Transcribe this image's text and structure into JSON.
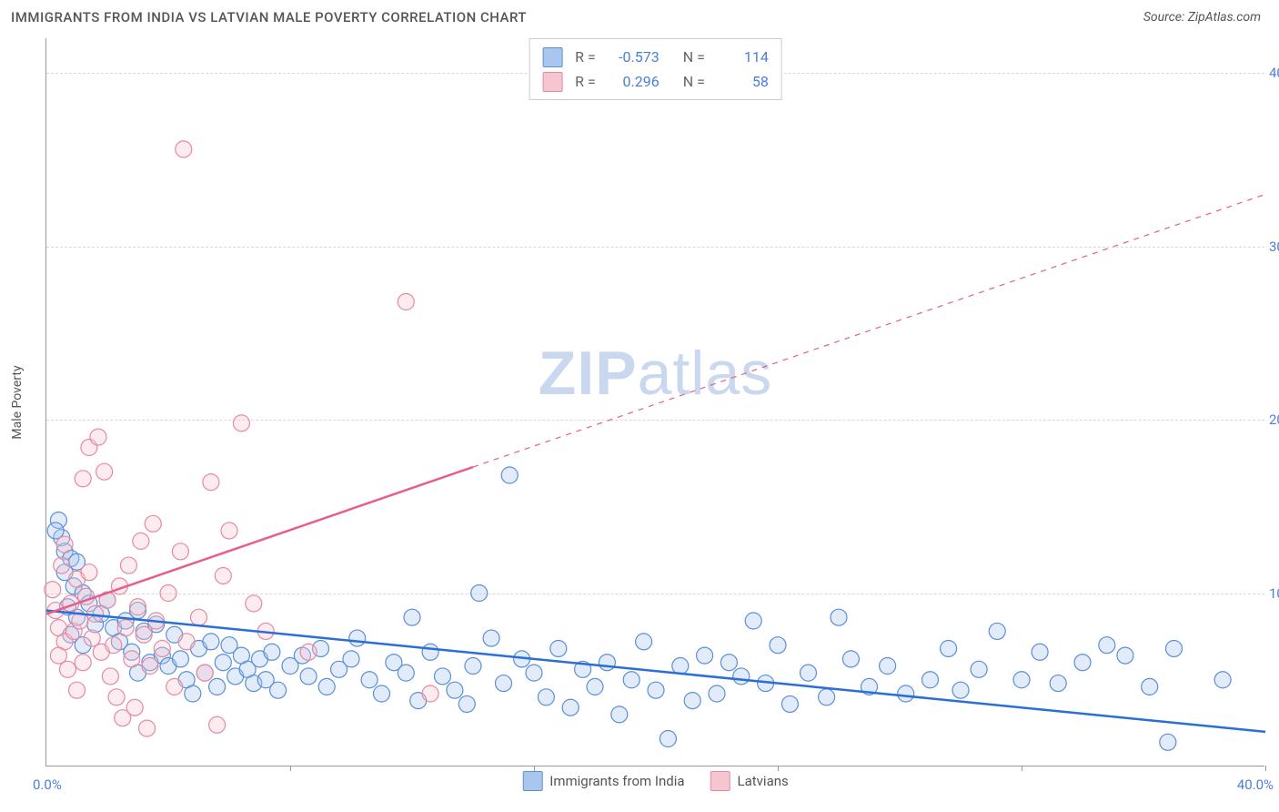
{
  "title": "IMMIGRANTS FROM INDIA VS LATVIAN MALE POVERTY CORRELATION CHART",
  "source": "Source: ZipAtlas.com",
  "watermark": "ZIPatlas",
  "y_axis_label": "Male Poverty",
  "chart": {
    "type": "scatter",
    "xlim": [
      0,
      40
    ],
    "ylim": [
      0,
      42
    ],
    "x_tick_positions": [
      0,
      8,
      16,
      24,
      32,
      40
    ],
    "x_tick_labels_shown": {
      "0": "0.0%",
      "40": "40.0%"
    },
    "y_ticks": [
      {
        "value": 10,
        "label": "10.0%"
      },
      {
        "value": 20,
        "label": "20.0%"
      },
      {
        "value": 30,
        "label": "30.0%"
      },
      {
        "value": 40,
        "label": "40.0%"
      }
    ],
    "background_color": "#ffffff",
    "grid_color": "#d8d8d8",
    "axis_color": "#999999",
    "marker_radius": 9,
    "marker_stroke_width": 1.2,
    "marker_fill_opacity": 0.35,
    "trend_line_width": 2.5,
    "series": [
      {
        "key": "india",
        "legend_label": "Immigrants from India",
        "color_fill": "#a8c6ee",
        "color_stroke": "#5b8fd6",
        "trend_color": "#2a6fd6",
        "R": "-0.573",
        "N": "114",
        "trend": {
          "x1": 0,
          "y1": 9.0,
          "x2": 40,
          "y2": 2.0,
          "solid_until_x": 40
        },
        "points": [
          [
            0.4,
            14.2
          ],
          [
            0.5,
            13.2
          ],
          [
            0.6,
            12.4
          ],
          [
            0.8,
            12.0
          ],
          [
            0.6,
            11.2
          ],
          [
            0.9,
            10.4
          ],
          [
            0.3,
            13.6
          ],
          [
            1.0,
            11.8
          ],
          [
            1.2,
            10.0
          ],
          [
            0.7,
            9.2
          ],
          [
            1.4,
            9.4
          ],
          [
            1.0,
            8.6
          ],
          [
            1.6,
            8.2
          ],
          [
            0.8,
            7.6
          ],
          [
            1.2,
            7.0
          ],
          [
            1.8,
            8.8
          ],
          [
            2.0,
            9.6
          ],
          [
            2.2,
            8.0
          ],
          [
            2.6,
            8.4
          ],
          [
            2.4,
            7.2
          ],
          [
            2.8,
            6.6
          ],
          [
            3.0,
            9.0
          ],
          [
            3.2,
            7.8
          ],
          [
            3.4,
            6.0
          ],
          [
            3.0,
            5.4
          ],
          [
            3.6,
            8.2
          ],
          [
            3.8,
            6.4
          ],
          [
            4.0,
            5.8
          ],
          [
            4.2,
            7.6
          ],
          [
            4.4,
            6.2
          ],
          [
            4.6,
            5.0
          ],
          [
            4.8,
            4.2
          ],
          [
            5.0,
            6.8
          ],
          [
            5.2,
            5.4
          ],
          [
            5.4,
            7.2
          ],
          [
            5.6,
            4.6
          ],
          [
            5.8,
            6.0
          ],
          [
            6.0,
            7.0
          ],
          [
            6.2,
            5.2
          ],
          [
            6.4,
            6.4
          ],
          [
            6.6,
            5.6
          ],
          [
            6.8,
            4.8
          ],
          [
            7.0,
            6.2
          ],
          [
            7.2,
            5.0
          ],
          [
            7.4,
            6.6
          ],
          [
            7.6,
            4.4
          ],
          [
            8.0,
            5.8
          ],
          [
            8.4,
            6.4
          ],
          [
            8.6,
            5.2
          ],
          [
            9.0,
            6.8
          ],
          [
            9.2,
            4.6
          ],
          [
            9.6,
            5.6
          ],
          [
            10.0,
            6.2
          ],
          [
            10.2,
            7.4
          ],
          [
            10.6,
            5.0
          ],
          [
            11.0,
            4.2
          ],
          [
            11.4,
            6.0
          ],
          [
            11.8,
            5.4
          ],
          [
            12.0,
            8.6
          ],
          [
            12.2,
            3.8
          ],
          [
            12.6,
            6.6
          ],
          [
            13.0,
            5.2
          ],
          [
            13.4,
            4.4
          ],
          [
            13.8,
            3.6
          ],
          [
            14.0,
            5.8
          ],
          [
            14.2,
            10.0
          ],
          [
            14.6,
            7.4
          ],
          [
            15.0,
            4.8
          ],
          [
            15.2,
            16.8
          ],
          [
            15.6,
            6.2
          ],
          [
            16.0,
            5.4
          ],
          [
            16.4,
            4.0
          ],
          [
            16.8,
            6.8
          ],
          [
            17.2,
            3.4
          ],
          [
            17.6,
            5.6
          ],
          [
            18.0,
            4.6
          ],
          [
            18.4,
            6.0
          ],
          [
            18.8,
            3.0
          ],
          [
            19.2,
            5.0
          ],
          [
            19.6,
            7.2
          ],
          [
            20.0,
            4.4
          ],
          [
            20.4,
            1.6
          ],
          [
            20.8,
            5.8
          ],
          [
            21.2,
            3.8
          ],
          [
            21.6,
            6.4
          ],
          [
            22.0,
            4.2
          ],
          [
            22.4,
            6.0
          ],
          [
            22.8,
            5.2
          ],
          [
            23.2,
            8.4
          ],
          [
            23.6,
            4.8
          ],
          [
            24.0,
            7.0
          ],
          [
            24.4,
            3.6
          ],
          [
            25.0,
            5.4
          ],
          [
            25.6,
            4.0
          ],
          [
            26.0,
            8.6
          ],
          [
            26.4,
            6.2
          ],
          [
            27.0,
            4.6
          ],
          [
            27.6,
            5.8
          ],
          [
            28.2,
            4.2
          ],
          [
            29.0,
            5.0
          ],
          [
            29.6,
            6.8
          ],
          [
            30.0,
            4.4
          ],
          [
            30.6,
            5.6
          ],
          [
            31.2,
            7.8
          ],
          [
            32.0,
            5.0
          ],
          [
            32.6,
            6.6
          ],
          [
            33.2,
            4.8
          ],
          [
            34.0,
            6.0
          ],
          [
            34.8,
            7.0
          ],
          [
            35.4,
            6.4
          ],
          [
            36.2,
            4.6
          ],
          [
            37.0,
            6.8
          ],
          [
            38.6,
            5.0
          ],
          [
            36.8,
            1.4
          ]
        ]
      },
      {
        "key": "latvians",
        "legend_label": "Latvians",
        "color_fill": "#f6c6d0",
        "color_stroke": "#e68aa0",
        "trend_color": "#e85d8a",
        "R": "0.296",
        "N": "58",
        "trend": {
          "x1": 0,
          "y1": 8.8,
          "x2": 40,
          "y2": 33.0,
          "solid_until_x": 14
        },
        "points": [
          [
            0.2,
            10.2
          ],
          [
            0.3,
            9.0
          ],
          [
            0.4,
            8.0
          ],
          [
            0.5,
            11.6
          ],
          [
            0.6,
            7.2
          ],
          [
            0.4,
            6.4
          ],
          [
            0.8,
            9.4
          ],
          [
            0.6,
            12.8
          ],
          [
            0.9,
            7.8
          ],
          [
            1.0,
            10.8
          ],
          [
            0.7,
            5.6
          ],
          [
            1.1,
            8.4
          ],
          [
            1.2,
            6.0
          ],
          [
            1.3,
            9.8
          ],
          [
            1.0,
            4.4
          ],
          [
            1.4,
            11.2
          ],
          [
            1.5,
            7.4
          ],
          [
            1.2,
            16.6
          ],
          [
            1.6,
            8.8
          ],
          [
            1.4,
            18.4
          ],
          [
            1.8,
            6.6
          ],
          [
            1.7,
            19.0
          ],
          [
            2.0,
            9.6
          ],
          [
            1.9,
            17.0
          ],
          [
            2.2,
            7.0
          ],
          [
            2.1,
            5.2
          ],
          [
            2.4,
            10.4
          ],
          [
            2.3,
            4.0
          ],
          [
            2.6,
            8.0
          ],
          [
            2.5,
            2.8
          ],
          [
            2.8,
            6.2
          ],
          [
            2.7,
            11.6
          ],
          [
            3.0,
            9.2
          ],
          [
            2.9,
            3.4
          ],
          [
            3.2,
            7.6
          ],
          [
            3.1,
            13.0
          ],
          [
            3.4,
            5.8
          ],
          [
            3.3,
            2.2
          ],
          [
            3.6,
            8.4
          ],
          [
            3.5,
            14.0
          ],
          [
            3.8,
            6.8
          ],
          [
            4.0,
            10.0
          ],
          [
            4.2,
            4.6
          ],
          [
            4.4,
            12.4
          ],
          [
            4.6,
            7.2
          ],
          [
            4.5,
            35.6
          ],
          [
            5.0,
            8.6
          ],
          [
            5.2,
            5.4
          ],
          [
            5.4,
            16.4
          ],
          [
            5.6,
            2.4
          ],
          [
            5.8,
            11.0
          ],
          [
            6.0,
            13.6
          ],
          [
            6.4,
            19.8
          ],
          [
            6.8,
            9.4
          ],
          [
            7.2,
            7.8
          ],
          [
            8.6,
            6.6
          ],
          [
            11.8,
            26.8
          ],
          [
            12.6,
            4.2
          ]
        ]
      }
    ]
  }
}
